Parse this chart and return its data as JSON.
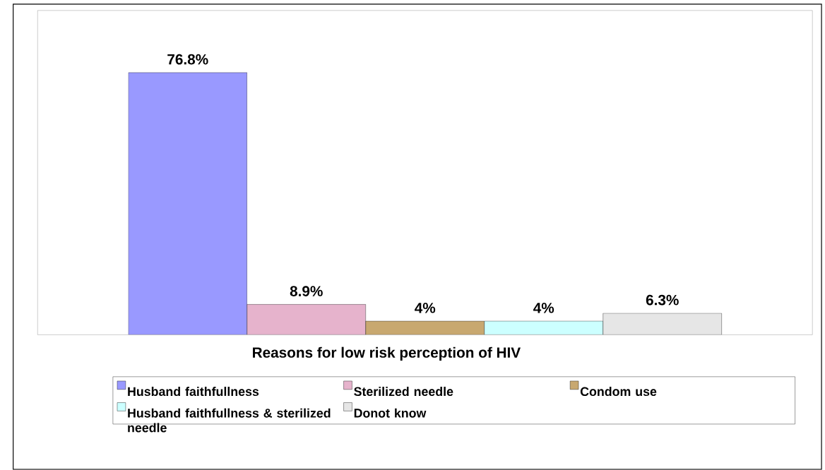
{
  "chart_data": {
    "type": "bar",
    "xlabel": "Reasons for low risk perception of HIV",
    "categories": [
      null
    ],
    "ylim": [
      0,
      95
    ],
    "tick_labels": false,
    "legend": "bottom",
    "series": [
      {
        "name": "Husband faithfullness",
        "color": "#9999ff",
        "values": [
          76.8
        ],
        "value_labels": [
          "76.8%"
        ]
      },
      {
        "name": "Sterilized needle",
        "color": "#e6b3cc",
        "values": [
          8.9
        ],
        "value_labels": [
          "8.9%"
        ]
      },
      {
        "name": "Condom use",
        "color": "#c8a870",
        "values": [
          4
        ],
        "value_labels": [
          "4%"
        ]
      },
      {
        "name": "Husband faithfullness & sterilized needle",
        "color": "#ccffff",
        "values": [
          4
        ],
        "value_labels": [
          "4%"
        ]
      },
      {
        "name": "Donot know",
        "color": "#e6e6e6",
        "values": [
          6.3
        ],
        "value_labels": [
          "6.3%"
        ]
      }
    ]
  }
}
